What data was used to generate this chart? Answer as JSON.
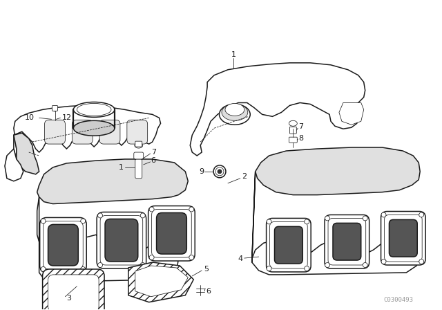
{
  "background_color": "#ffffff",
  "line_color": "#1a1a1a",
  "fig_width": 6.4,
  "fig_height": 4.48,
  "dpi": 100,
  "watermark": "C0300493",
  "watermark_fontsize": 6.5,
  "watermark_color": "#999999",
  "label_fontsize": 8.0,
  "lw_main": 1.1,
  "lw_thin": 0.55,
  "lw_thick": 1.6
}
